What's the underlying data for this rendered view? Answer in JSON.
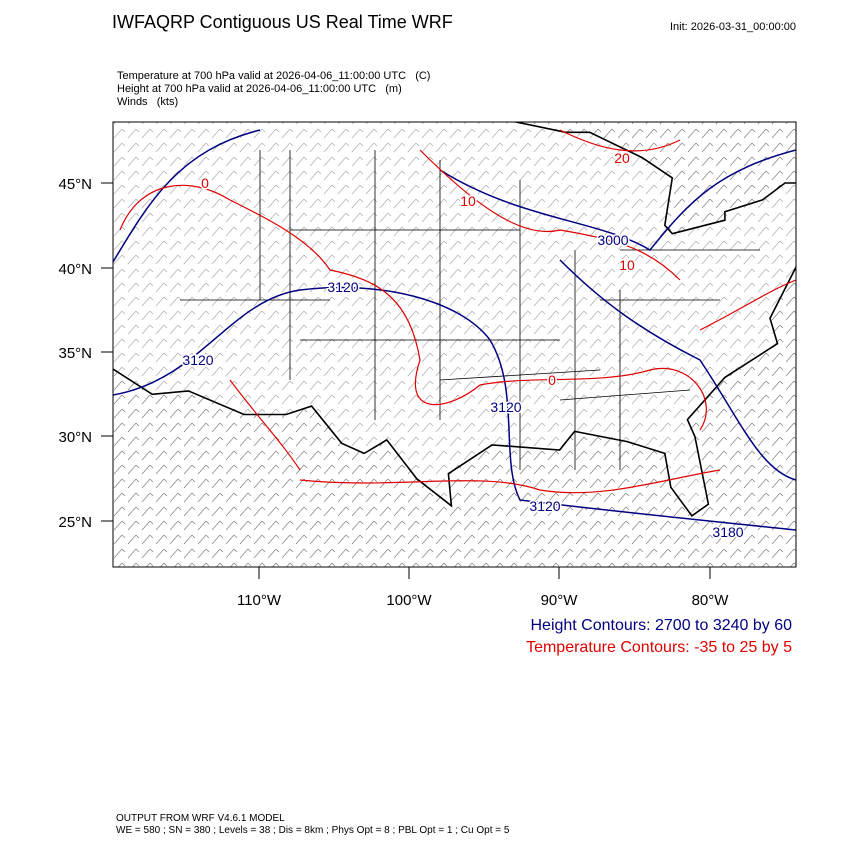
{
  "header": {
    "title": "IWFAQRP Contiguous US Real Time WRF",
    "init": "Init: 2026-03-31_00:00:00"
  },
  "fields": [
    "Temperature at 700 hPa valid at 2026-04-06_11:00:00 UTC   (C)",
    "Height at 700 hPa valid at 2026-04-06_11:00:00 UTC   (m)",
    "Winds   (kts)"
  ],
  "map": {
    "lat_labels": [
      "45°N",
      "40°N",
      "35°N",
      "30°N",
      "25°N"
    ],
    "lon_labels": [
      "110°W",
      "100°W",
      "90°W",
      "80°W"
    ],
    "contour_labels": [
      {
        "text": "20",
        "color": "#e00000"
      },
      {
        "text": "10",
        "color": "#e00000"
      },
      {
        "text": "10",
        "color": "#e00000"
      },
      {
        "text": "0",
        "color": "#e00000"
      },
      {
        "text": "0",
        "color": "#e00000"
      },
      {
        "text": "3000",
        "color": "#000080"
      },
      {
        "text": "3120",
        "color": "#000080"
      },
      {
        "text": "3120",
        "color": "#000080"
      },
      {
        "text": "3120",
        "color": "#000080"
      },
      {
        "text": "3120",
        "color": "#000080"
      },
      {
        "text": "3180",
        "color": "#000080"
      }
    ]
  },
  "legend": {
    "height": "Height Contours: 2700 to 3240 by 60",
    "temperature": "Temperature Contours: -35 to 25 by 5"
  },
  "footer": [
    "OUTPUT FROM WRF V4.6.1 MODEL",
    "WE = 580 ; SN = 380 ; Levels = 38 ; Dis = 8km ; Phys Opt = 8 ; PBL Opt = 1 ; Cu Opt = 5"
  ]
}
